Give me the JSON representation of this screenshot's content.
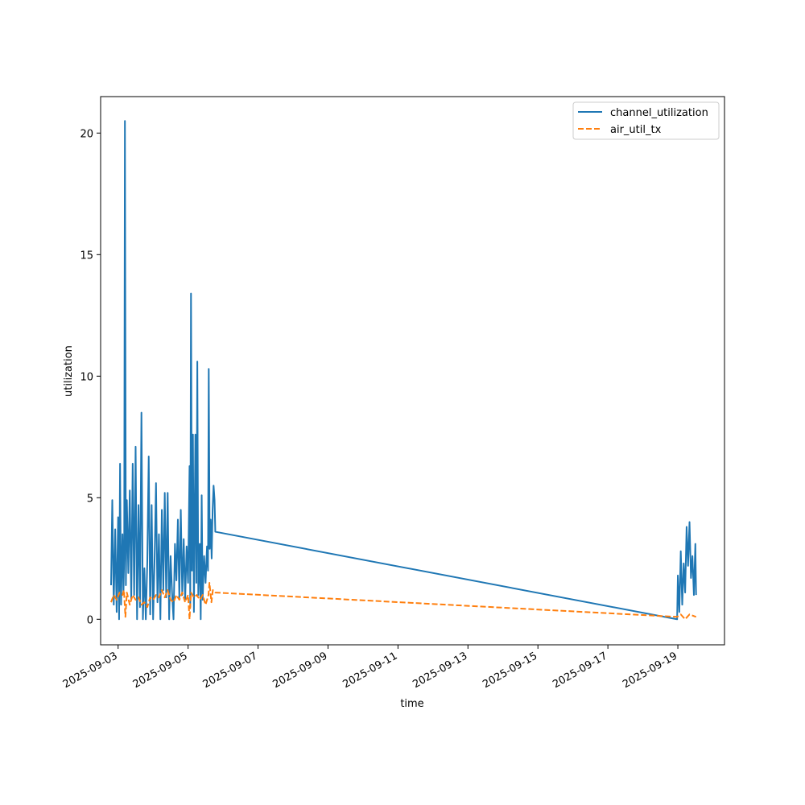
{
  "chart_data": {
    "type": "line",
    "xlabel": "time",
    "ylabel": "utilization",
    "xlim": [
      "2025-09-02T12:00",
      "2025-09-20T08:00"
    ],
    "ylim": [
      -1.05,
      21.5
    ],
    "x_ticks": [
      "2025-09-03",
      "2025-09-05",
      "2025-09-07",
      "2025-09-09",
      "2025-09-11",
      "2025-09-13",
      "2025-09-15",
      "2025-09-17",
      "2025-09-19"
    ],
    "y_ticks": [
      0,
      5,
      10,
      15,
      20
    ],
    "legend_position": "top-right",
    "grid": false,
    "series": [
      {
        "name": "channel_utilization",
        "color": "#1f77b4",
        "style": "solid",
        "points": [
          [
            "2025-09-02T19:10",
            1.4
          ],
          [
            "2025-09-02T20:00",
            4.9
          ],
          [
            "2025-09-02T21:00",
            0.6
          ],
          [
            "2025-09-02T22:00",
            3.7
          ],
          [
            "2025-09-02T23:00",
            0.3
          ],
          [
            "2025-09-03T00:00",
            4.2
          ],
          [
            "2025-09-03T00:40",
            0.0
          ],
          [
            "2025-09-03T01:20",
            6.4
          ],
          [
            "2025-09-03T02:00",
            0.6
          ],
          [
            "2025-09-03T03:00",
            3.5
          ],
          [
            "2025-09-03T03:40",
            1.1
          ],
          [
            "2025-09-03T04:10",
            2.5
          ],
          [
            "2025-09-03T04:40",
            20.5
          ],
          [
            "2025-09-03T05:20",
            1.4
          ],
          [
            "2025-09-03T06:00",
            4.9
          ],
          [
            "2025-09-03T07:00",
            1.9
          ],
          [
            "2025-09-03T08:00",
            5.3
          ],
          [
            "2025-09-03T09:00",
            0.8
          ],
          [
            "2025-09-03T10:00",
            6.4
          ],
          [
            "2025-09-03T11:00",
            1.0
          ],
          [
            "2025-09-03T12:00",
            7.1
          ],
          [
            "2025-09-03T13:00",
            0.0
          ],
          [
            "2025-09-03T14:00",
            4.7
          ],
          [
            "2025-09-03T15:00",
            0.5
          ],
          [
            "2025-09-03T16:00",
            8.5
          ],
          [
            "2025-09-03T17:00",
            0.0
          ],
          [
            "2025-09-03T18:00",
            2.1
          ],
          [
            "2025-09-03T19:00",
            0.0
          ],
          [
            "2025-09-03T20:00",
            2.3
          ],
          [
            "2025-09-03T21:00",
            6.7
          ],
          [
            "2025-09-03T22:00",
            0.2
          ],
          [
            "2025-09-03T23:00",
            4.7
          ],
          [
            "2025-09-04T00:00",
            0.0
          ],
          [
            "2025-09-04T01:00",
            2.4
          ],
          [
            "2025-09-04T02:00",
            5.6
          ],
          [
            "2025-09-04T03:00",
            0.7
          ],
          [
            "2025-09-04T04:00",
            3.5
          ],
          [
            "2025-09-04T05:00",
            0.0
          ],
          [
            "2025-09-04T06:00",
            4.5
          ],
          [
            "2025-09-04T07:00",
            1.2
          ],
          [
            "2025-09-04T08:00",
            5.2
          ],
          [
            "2025-09-04T09:00",
            0.9
          ],
          [
            "2025-09-04T10:00",
            5.2
          ],
          [
            "2025-09-04T11:00",
            0.0
          ],
          [
            "2025-09-04T12:00",
            2.6
          ],
          [
            "2025-09-04T13:00",
            1.1
          ],
          [
            "2025-09-04T14:00",
            0.0
          ],
          [
            "2025-09-04T15:00",
            3.1
          ],
          [
            "2025-09-04T16:00",
            1.6
          ],
          [
            "2025-09-04T17:00",
            4.1
          ],
          [
            "2025-09-04T18:00",
            0.9
          ],
          [
            "2025-09-04T19:00",
            4.5
          ],
          [
            "2025-09-04T20:00",
            1.0
          ],
          [
            "2025-09-04T21:00",
            3.3
          ],
          [
            "2025-09-04T22:00",
            0.8
          ],
          [
            "2025-09-04T23:00",
            3.0
          ],
          [
            "2025-09-05T00:00",
            1.5
          ],
          [
            "2025-09-05T01:00",
            6.3
          ],
          [
            "2025-09-05T01:30",
            0.5
          ],
          [
            "2025-09-05T02:00",
            13.4
          ],
          [
            "2025-09-05T02:40",
            2.0
          ],
          [
            "2025-09-05T03:20",
            7.6
          ],
          [
            "2025-09-05T04:00",
            0.3
          ],
          [
            "2025-09-05T05:00",
            7.6
          ],
          [
            "2025-09-05T05:40",
            1.5
          ],
          [
            "2025-09-05T06:20",
            10.6
          ],
          [
            "2025-09-05T07:00",
            1.0
          ],
          [
            "2025-09-05T08:00",
            3.1
          ],
          [
            "2025-09-05T08:40",
            0.0
          ],
          [
            "2025-09-05T09:20",
            5.1
          ],
          [
            "2025-09-05T10:00",
            0.8
          ],
          [
            "2025-09-05T11:00",
            2.6
          ],
          [
            "2025-09-05T12:00",
            1.5
          ],
          [
            "2025-09-05T13:00",
            3.0
          ],
          [
            "2025-09-05T13:40",
            2.0
          ],
          [
            "2025-09-05T14:10",
            10.3
          ],
          [
            "2025-09-05T14:50",
            2.9
          ],
          [
            "2025-09-05T15:30",
            4.1
          ],
          [
            "2025-09-05T16:10",
            2.5
          ],
          [
            "2025-09-05T16:50",
            4.5
          ],
          [
            "2025-09-05T17:30",
            5.5
          ],
          [
            "2025-09-05T18:10",
            4.9
          ],
          [
            "2025-09-05T18:40",
            3.6
          ],
          [
            "2025-09-18T23:30",
            0.0
          ],
          [
            "2025-09-19T00:00",
            1.8
          ],
          [
            "2025-09-19T01:00",
            0.3
          ],
          [
            "2025-09-19T02:00",
            2.8
          ],
          [
            "2025-09-19T03:00",
            0.6
          ],
          [
            "2025-09-19T04:00",
            2.3
          ],
          [
            "2025-09-19T05:00",
            1.1
          ],
          [
            "2025-09-19T06:00",
            3.8
          ],
          [
            "2025-09-19T07:00",
            2.2
          ],
          [
            "2025-09-19T08:00",
            4.0
          ],
          [
            "2025-09-19T09:00",
            1.7
          ],
          [
            "2025-09-19T10:00",
            2.6
          ],
          [
            "2025-09-19T11:00",
            1.0
          ],
          [
            "2025-09-19T12:00",
            3.1
          ],
          [
            "2025-09-19T12:30",
            1.0
          ]
        ]
      },
      {
        "name": "air_util_tx",
        "color": "#ff7f0e",
        "style": "dashed",
        "points": [
          [
            "2025-09-02T19:10",
            0.7
          ],
          [
            "2025-09-02T21:00",
            1.0
          ],
          [
            "2025-09-02T23:00",
            0.8
          ],
          [
            "2025-09-03T01:00",
            1.1
          ],
          [
            "2025-09-03T03:00",
            1.0
          ],
          [
            "2025-09-03T04:00",
            1.2
          ],
          [
            "2025-09-03T05:00",
            0.1
          ],
          [
            "2025-09-03T06:00",
            1.1
          ],
          [
            "2025-09-03T08:00",
            0.6
          ],
          [
            "2025-09-03T10:00",
            1.0
          ],
          [
            "2025-09-03T12:00",
            0.8
          ],
          [
            "2025-09-03T14:00",
            0.9
          ],
          [
            "2025-09-03T16:00",
            0.6
          ],
          [
            "2025-09-03T18:00",
            0.7
          ],
          [
            "2025-09-03T20:00",
            0.5
          ],
          [
            "2025-09-03T22:00",
            0.9
          ],
          [
            "2025-09-04T00:00",
            0.8
          ],
          [
            "2025-09-04T02:00",
            1.0
          ],
          [
            "2025-09-04T04:00",
            0.9
          ],
          [
            "2025-09-04T06:00",
            1.2
          ],
          [
            "2025-09-04T08:00",
            0.9
          ],
          [
            "2025-09-04T10:00",
            1.2
          ],
          [
            "2025-09-04T12:00",
            0.8
          ],
          [
            "2025-09-04T14:00",
            0.7
          ],
          [
            "2025-09-04T16:00",
            1.0
          ],
          [
            "2025-09-04T18:00",
            0.8
          ],
          [
            "2025-09-04T20:00",
            1.1
          ],
          [
            "2025-09-04T22:00",
            0.7
          ],
          [
            "2025-09-05T00:00",
            1.0
          ],
          [
            "2025-09-05T01:00",
            0.0
          ],
          [
            "2025-09-05T02:00",
            1.1
          ],
          [
            "2025-09-05T04:00",
            0.9
          ],
          [
            "2025-09-05T06:00",
            1.0
          ],
          [
            "2025-09-05T08:00",
            0.8
          ],
          [
            "2025-09-05T10:00",
            1.0
          ],
          [
            "2025-09-05T12:00",
            0.6
          ],
          [
            "2025-09-05T14:00",
            1.0
          ],
          [
            "2025-09-05T14:40",
            1.5
          ],
          [
            "2025-09-05T16:00",
            0.7
          ],
          [
            "2025-09-05T17:00",
            1.2
          ],
          [
            "2025-09-05T18:40",
            1.1
          ],
          [
            "2025-09-18T23:30",
            0.1
          ],
          [
            "2025-09-19T02:00",
            0.2
          ],
          [
            "2025-09-19T05:00",
            0.0
          ],
          [
            "2025-09-19T08:00",
            0.2
          ],
          [
            "2025-09-19T12:30",
            0.1
          ]
        ]
      }
    ]
  }
}
